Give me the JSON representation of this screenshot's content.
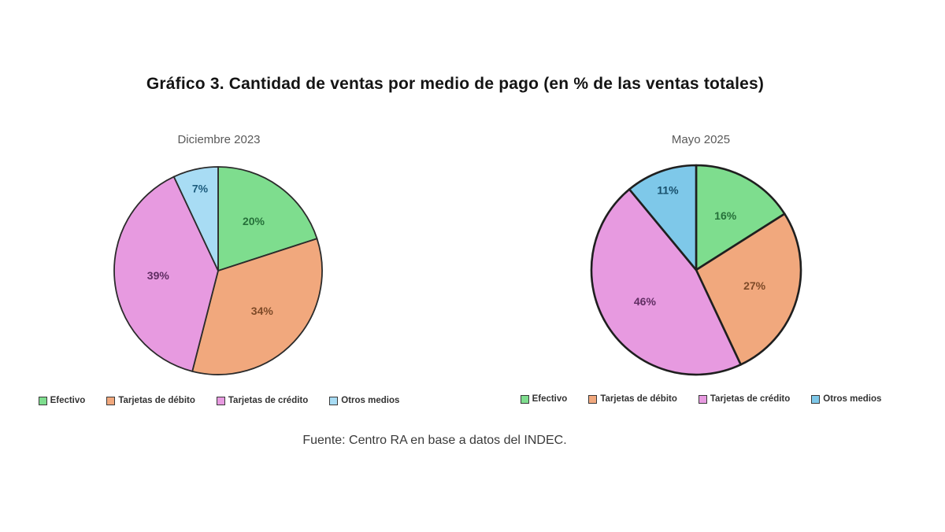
{
  "title": "Gráfico 3. Cantidad de ventas por medio de pago (en % de las ventas totales)",
  "source": "Fuente: Centro RA en base a datos del INDEC.",
  "chart_data": [
    {
      "type": "pie",
      "title": "Diciembre 2023",
      "unit": "%",
      "start_angle": "top",
      "direction": "clockwise",
      "legend_position": "bottom",
      "slices": [
        {
          "label": "Efectivo",
          "value": 20,
          "color": "#7edd8e",
          "label_color": "#26703a"
        },
        {
          "label": "Tarjetas de débito",
          "value": 34,
          "color": "#f1a87d",
          "label_color": "#7d4a28"
        },
        {
          "label": "Tarjetas de crédito",
          "value": 39,
          "color": "#e79ae0",
          "label_color": "#5f2d62"
        },
        {
          "label": "Otros medios",
          "value": 7,
          "color": "#a8dcf4",
          "label_color": "#1d5c7d"
        }
      ]
    },
    {
      "type": "pie",
      "title": "Mayo 2025",
      "unit": "%",
      "start_angle": "top",
      "direction": "clockwise",
      "legend_position": "bottom",
      "slices": [
        {
          "label": "Efectivo",
          "value": 16,
          "color": "#7edd8e",
          "label_color": "#26703a"
        },
        {
          "label": "Tarjetas de débito",
          "value": 27,
          "color": "#f1a87d",
          "label_color": "#7d4a28"
        },
        {
          "label": "Tarjetas de crédito",
          "value": 46,
          "color": "#e79ae0",
          "label_color": "#5f2d62"
        },
        {
          "label": "Otros medios",
          "value": 11,
          "color": "#7ec8e9",
          "label_color": "#174f6b"
        }
      ]
    }
  ]
}
